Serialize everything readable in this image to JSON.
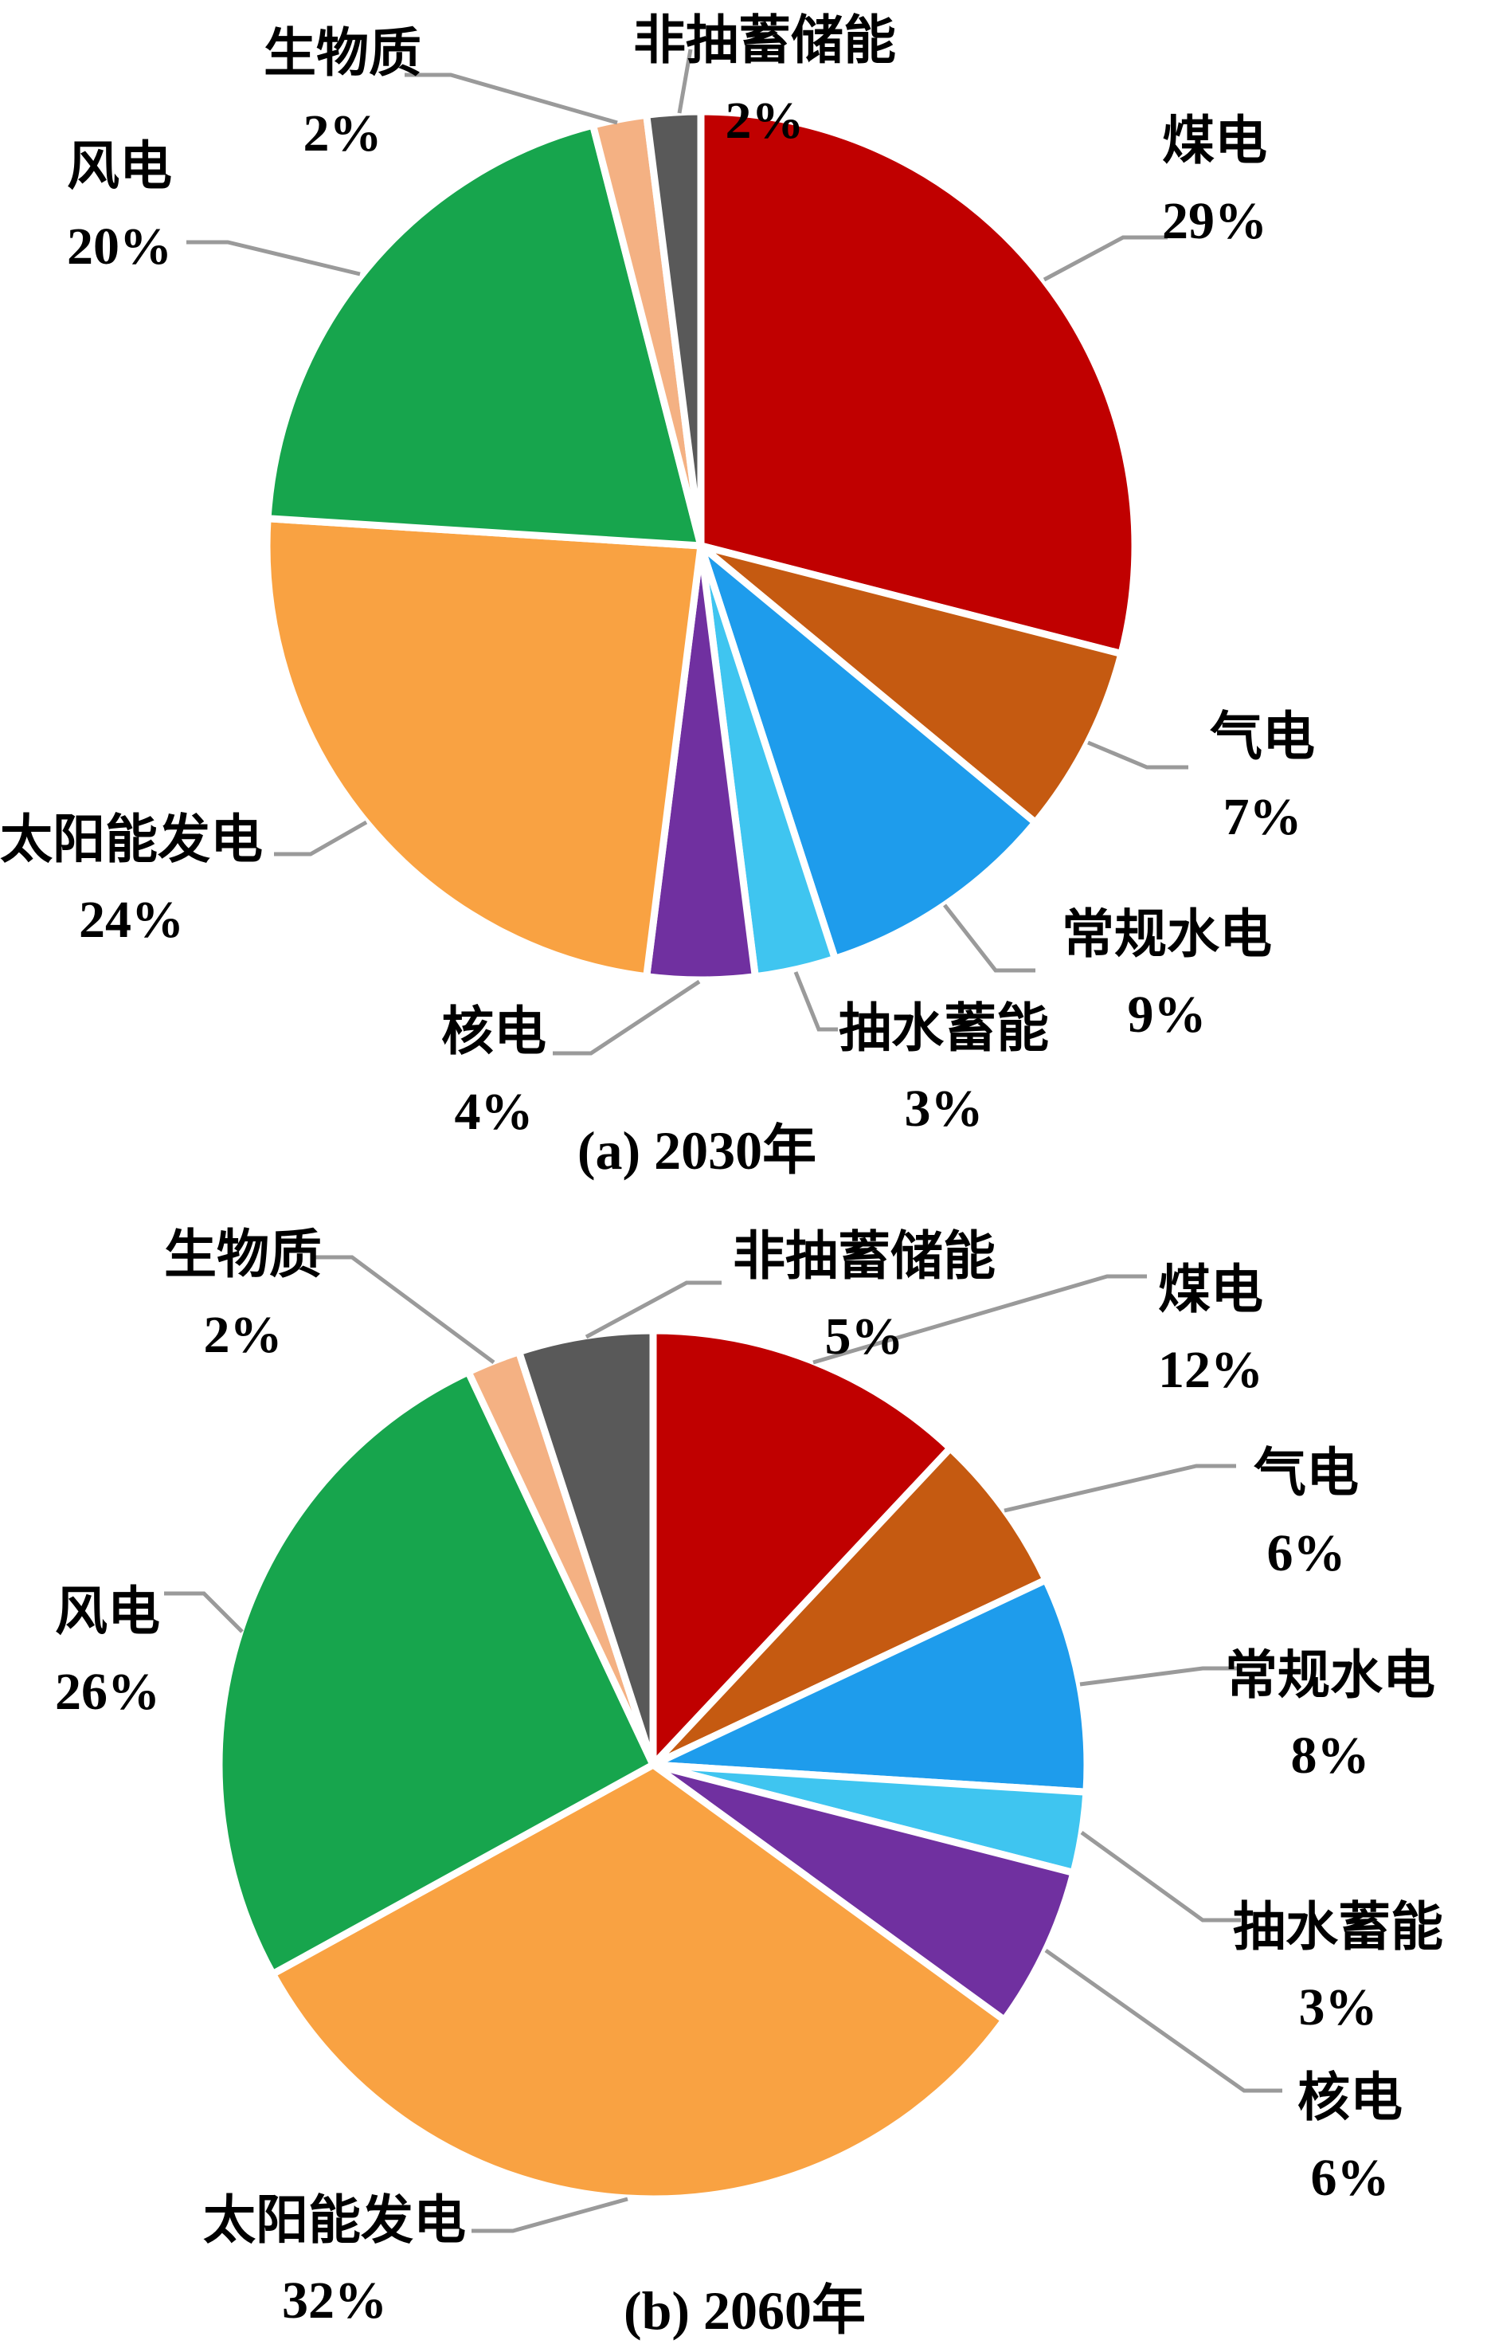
{
  "figure": {
    "description": "两个电源结构饼图",
    "background": "#FFFFFF"
  },
  "colors": {
    "text": "#000000",
    "leader_line": "#9A9A9A",
    "slice_gap": "#FFFFFF"
  },
  "chart_data": [
    {
      "type": "pie",
      "title": "(a) 2030年",
      "units": "%",
      "start_angle": "12-oclock-clockwise",
      "legend_position": "outside-callouts",
      "slices": [
        {
          "label": "煤电",
          "value": 29,
          "pct_text": "29%",
          "color": "#C00000"
        },
        {
          "label": "气电",
          "value": 7,
          "pct_text": "7%",
          "color": "#C55A11"
        },
        {
          "label": "常规水电",
          "value": 9,
          "pct_text": "9%",
          "color": "#1E9CEC"
        },
        {
          "label": "抽水蓄能",
          "value": 3,
          "pct_text": "3%",
          "color": "#3FC5F0"
        },
        {
          "label": "核电",
          "value": 4,
          "pct_text": "4%",
          "color": "#7030A0"
        },
        {
          "label": "太阳能发电",
          "value": 24,
          "pct_text": "24%",
          "color": "#F9A242"
        },
        {
          "label": "风电",
          "value": 20,
          "pct_text": "20%",
          "color": "#17A54D"
        },
        {
          "label": "生物质",
          "value": 2,
          "pct_text": "2%",
          "color": "#F4B183"
        },
        {
          "label": "非抽蓄储能",
          "value": 2,
          "pct_text": "2%",
          "color": "#595959"
        }
      ]
    },
    {
      "type": "pie",
      "title": "(b) 2060年",
      "units": "%",
      "start_angle": "12-oclock-clockwise",
      "legend_position": "outside-callouts",
      "slices": [
        {
          "label": "煤电",
          "value": 12,
          "pct_text": "12%",
          "color": "#C00000"
        },
        {
          "label": "气电",
          "value": 6,
          "pct_text": "6%",
          "color": "#C55A11"
        },
        {
          "label": "常规水电",
          "value": 8,
          "pct_text": "8%",
          "color": "#1E9CEC"
        },
        {
          "label": "抽水蓄能",
          "value": 3,
          "pct_text": "3%",
          "color": "#3FC5F0"
        },
        {
          "label": "核电",
          "value": 6,
          "pct_text": "6%",
          "color": "#7030A0"
        },
        {
          "label": "太阳能发电",
          "value": 32,
          "pct_text": "32%",
          "color": "#F9A242"
        },
        {
          "label": "风电",
          "value": 26,
          "pct_text": "26%",
          "color": "#17A54D"
        },
        {
          "label": "生物质",
          "value": 2,
          "pct_text": "2%",
          "color": "#F4B183"
        },
        {
          "label": "非抽蓄储能",
          "value": 5,
          "pct_text": "5%",
          "color": "#595959"
        }
      ]
    }
  ]
}
